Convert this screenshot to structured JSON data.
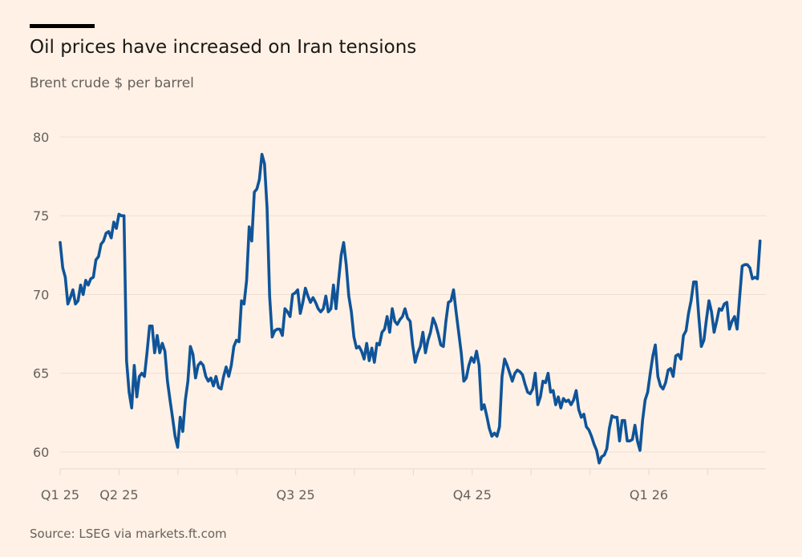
{
  "header": {
    "title": "Oil prices have increased on Iran tensions",
    "subtitle": "Brent crude $ per barrel"
  },
  "footer": {
    "source": "Source: LSEG via markets.ft.com"
  },
  "colors": {
    "background": "#fff1e5",
    "line": "#0f5499",
    "grid": "#ecdfd3"
  },
  "chart_data": {
    "type": "line",
    "title": "Oil prices have increased on Iran tensions",
    "subtitle": "Brent crude $ per barrel",
    "xlabel": "",
    "ylabel": "Brent crude $ per barrel",
    "ylim": [
      58.93,
      80
    ],
    "yticks": [
      60,
      65,
      70,
      75,
      80
    ],
    "x_unit": "months since Jan 2025 (evenly spaced samples)",
    "x_range": [
      2.0,
      13.89
    ],
    "minor_ticks_months": [
      2,
      3,
      4,
      5,
      6,
      7,
      8,
      9,
      10,
      11,
      12,
      13
    ],
    "xticks": [
      {
        "month": 2,
        "label": "Q1 25"
      },
      {
        "month": 3,
        "label": "Q2 25"
      },
      {
        "month": 6,
        "label": "Q3 25"
      },
      {
        "month": 9,
        "label": "Q4 25"
      },
      {
        "month": 12,
        "label": "Q1 26"
      }
    ],
    "grid": true,
    "legend": "none",
    "series": [
      {
        "name": "Brent crude",
        "values": [
          73.3,
          71.7,
          71.1,
          69.4,
          69.8,
          70.3,
          69.4,
          69.6,
          70.6,
          70.0,
          70.9,
          70.6,
          71.0,
          71.1,
          72.2,
          72.4,
          73.2,
          73.4,
          73.9,
          74.0,
          73.6,
          74.6,
          74.2,
          75.1,
          75.0,
          75.0,
          65.8,
          63.8,
          62.8,
          65.5,
          63.5,
          64.8,
          65.0,
          64.8,
          66.3,
          68.0,
          68.0,
          66.3,
          67.4,
          66.3,
          66.9,
          66.4,
          64.5,
          63.3,
          62.2,
          61.0,
          60.3,
          62.2,
          61.3,
          63.3,
          64.5,
          66.7,
          66.2,
          64.7,
          65.5,
          65.7,
          65.5,
          64.8,
          64.5,
          64.7,
          64.2,
          64.8,
          64.1,
          64.0,
          64.8,
          65.4,
          64.8,
          65.5,
          66.7,
          67.1,
          67.0,
          69.6,
          69.4,
          70.9,
          74.3,
          73.4,
          76.5,
          76.7,
          77.3,
          78.9,
          78.3,
          75.5,
          69.9,
          67.3,
          67.7,
          67.8,
          67.8,
          67.4,
          69.1,
          68.9,
          68.6,
          70.0,
          70.1,
          70.3,
          68.8,
          69.5,
          70.4,
          69.9,
          69.5,
          69.8,
          69.5,
          69.1,
          68.9,
          69.1,
          69.9,
          68.9,
          69.1,
          70.6,
          69.1,
          70.9,
          72.5,
          73.3,
          71.9,
          69.9,
          68.9,
          67.3,
          66.6,
          66.7,
          66.4,
          65.9,
          66.9,
          65.8,
          66.6,
          65.7,
          66.9,
          66.8,
          67.6,
          67.8,
          68.6,
          67.6,
          69.1,
          68.3,
          68.1,
          68.4,
          68.6,
          69.1,
          68.5,
          68.3,
          66.8,
          65.7,
          66.3,
          66.7,
          67.6,
          66.3,
          67.1,
          67.6,
          68.5,
          68.1,
          67.5,
          66.8,
          66.7,
          68.3,
          69.5,
          69.6,
          70.3,
          68.9,
          67.6,
          66.3,
          64.5,
          64.7,
          65.5,
          66.0,
          65.7,
          66.4,
          65.5,
          62.7,
          63.0,
          62.3,
          61.5,
          61.0,
          61.2,
          61.0,
          61.6,
          64.8,
          65.9,
          65.5,
          65.0,
          64.5,
          65.0,
          65.2,
          65.1,
          64.9,
          64.3,
          63.8,
          63.7,
          64.0,
          65.0,
          63.0,
          63.5,
          64.5,
          64.4,
          65.0,
          63.8,
          63.9,
          63.0,
          63.5,
          62.8,
          63.4,
          63.2,
          63.3,
          63.0,
          63.3,
          63.9,
          62.7,
          62.2,
          62.4,
          61.6,
          61.4,
          61.0,
          60.5,
          60.1,
          59.3,
          59.7,
          59.8,
          60.2,
          61.5,
          62.3,
          62.2,
          62.2,
          60.7,
          62.0,
          62.0,
          60.7,
          60.7,
          60.8,
          61.7,
          60.7,
          60.1,
          62.0,
          63.3,
          63.8,
          65.0,
          66.1,
          66.8,
          64.8,
          64.2,
          64.0,
          64.4,
          65.2,
          65.3,
          64.8,
          66.1,
          66.2,
          65.9,
          67.4,
          67.7,
          68.8,
          69.6,
          70.8,
          70.8,
          68.6,
          66.7,
          67.1,
          68.4,
          69.6,
          68.9,
          67.6,
          68.3,
          69.1,
          69.0,
          69.4,
          69.5,
          67.8,
          68.3,
          68.6,
          67.8,
          69.8,
          71.8,
          71.9,
          71.9,
          71.7,
          71.0,
          71.1,
          71.0,
          73.4
        ]
      }
    ]
  }
}
